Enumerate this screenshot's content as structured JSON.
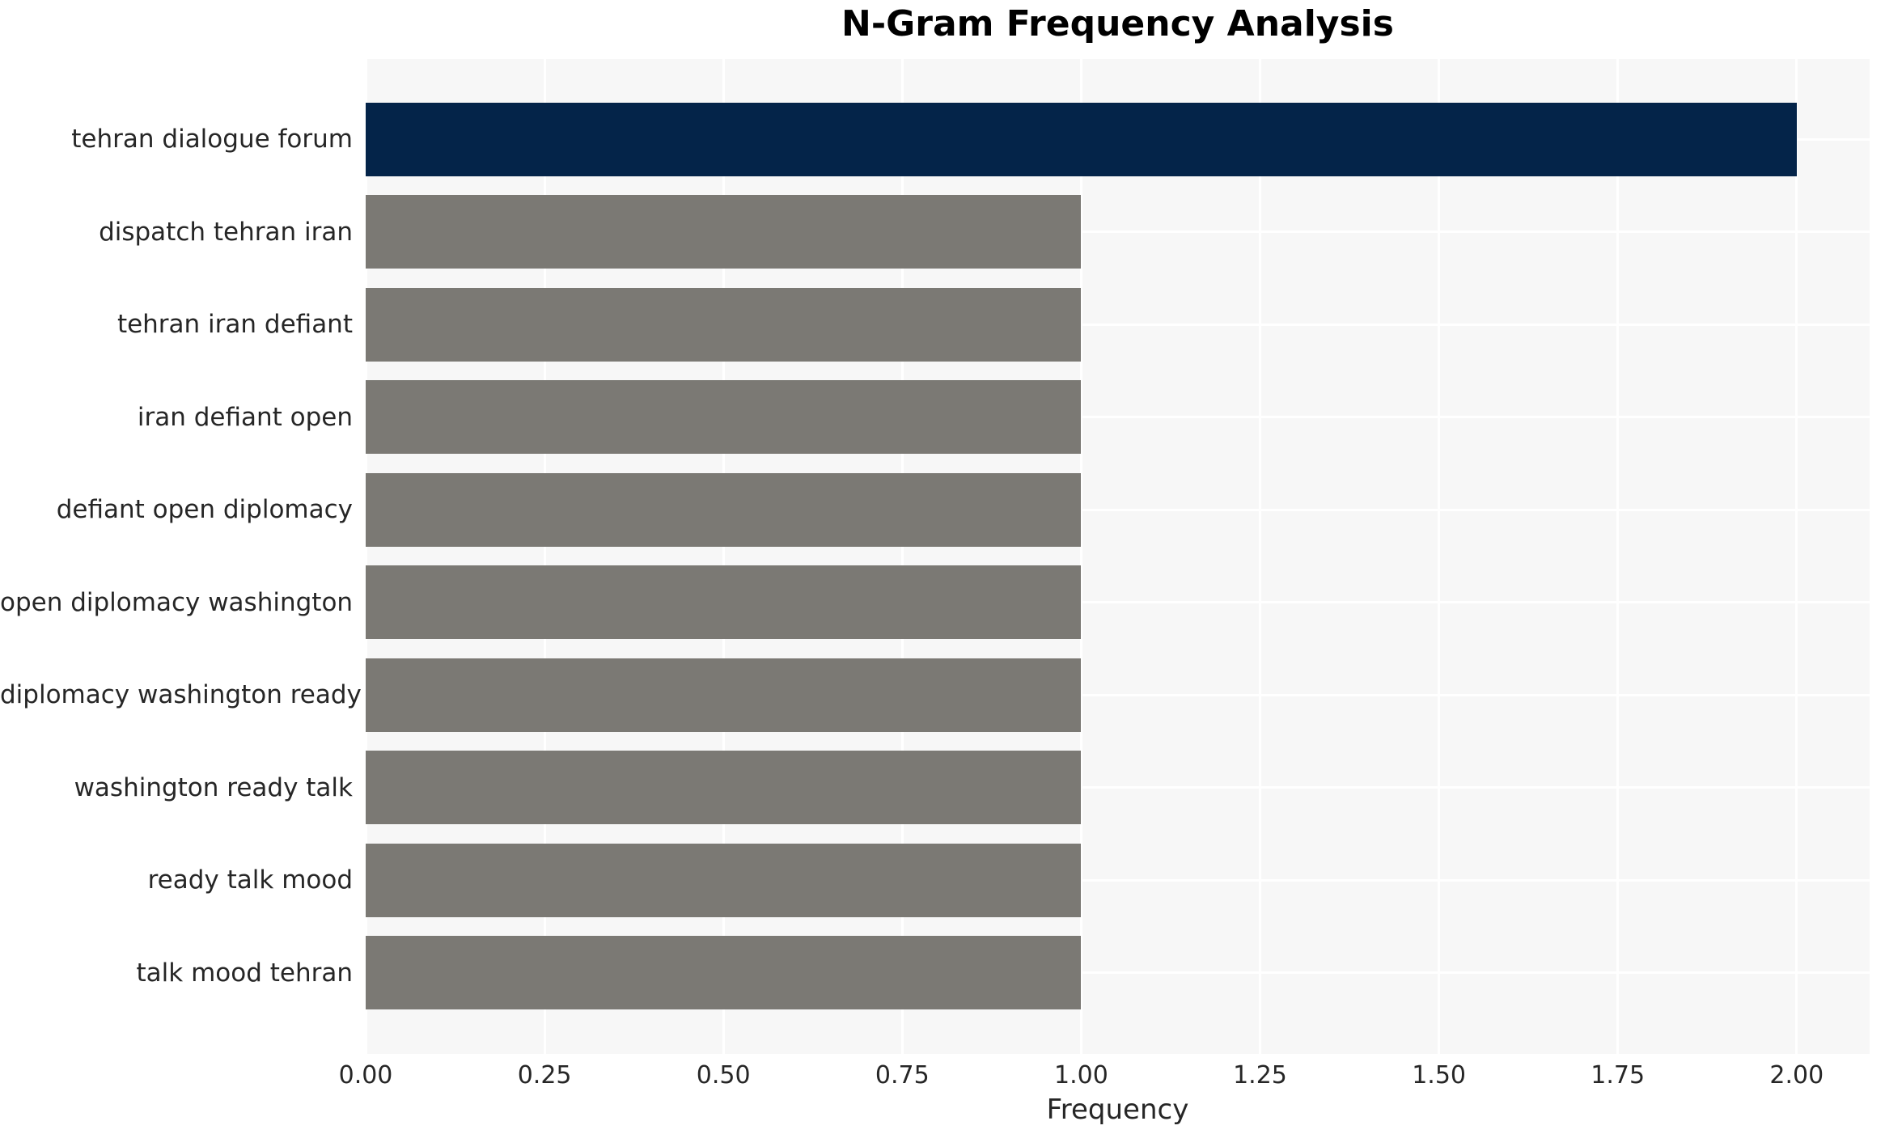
{
  "chart_data": {
    "type": "bar",
    "orientation": "horizontal",
    "title": "N-Gram Frequency Analysis",
    "xlabel": "Frequency",
    "ylabel": "",
    "categories": [
      "tehran dialogue forum",
      "dispatch tehran iran",
      "tehran iran defiant",
      "iran defiant open",
      "defiant open diplomacy",
      "open diplomacy washington",
      "diplomacy washington ready",
      "washington ready talk",
      "ready talk mood",
      "talk mood tehran"
    ],
    "values": [
      2,
      1,
      1,
      1,
      1,
      1,
      1,
      1,
      1,
      1
    ],
    "bar_colors": [
      "#042449",
      "#7b7974",
      "#7b7974",
      "#7b7974",
      "#7b7974",
      "#7b7974",
      "#7b7974",
      "#7b7974",
      "#7b7974",
      "#7b7974"
    ],
    "xtick_labels": [
      "0.00",
      "0.25",
      "0.50",
      "0.75",
      "1.00",
      "1.25",
      "1.50",
      "1.75",
      "2.00"
    ],
    "xtick_values": [
      0,
      0.25,
      0.5,
      0.75,
      1.0,
      1.25,
      1.5,
      1.75,
      2.0
    ],
    "xlim": [
      0,
      2.102
    ],
    "grid": true,
    "grid_color": "#ffffff",
    "plot_background": "#f7f7f7",
    "figure_background": "#ffffff",
    "text_color": "#262626",
    "legend": false
  }
}
